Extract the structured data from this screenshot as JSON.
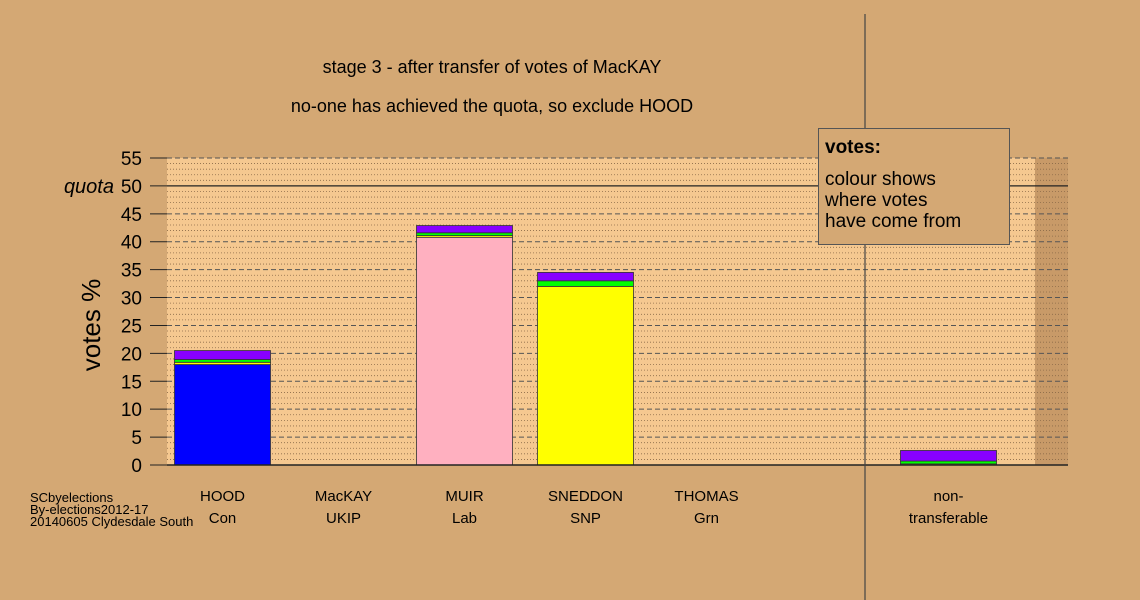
{
  "chart_data": {
    "type": "bar",
    "stacked": true,
    "title": "stage 3 - after transfer of votes of MacKAY",
    "subtitle": "no-one has achieved the quota, so exclude HOOD",
    "ylabel": "votes %",
    "ylim": [
      0,
      55
    ],
    "yticks": [
      0,
      5,
      10,
      15,
      20,
      25,
      30,
      35,
      40,
      45,
      50,
      55
    ],
    "quota": {
      "label": "quota",
      "value": 50
    },
    "categories": [
      {
        "name": "HOOD",
        "party": "Con"
      },
      {
        "name": "MacKAY",
        "party": "UKIP"
      },
      {
        "name": "MUIR",
        "party": "Lab"
      },
      {
        "name": "SNEDDON",
        "party": "SNP"
      },
      {
        "name": "THOMAS",
        "party": "Grn"
      },
      {
        "name": "",
        "party": ""
      },
      {
        "name": "non-",
        "party": "transferable"
      }
    ],
    "stacks": [
      [
        {
          "value": 18.0,
          "color": "#0000ff"
        },
        {
          "value": 0.4,
          "color": "#ffff00"
        },
        {
          "value": 0.5,
          "color": "#00ff00"
        },
        {
          "value": 1.6,
          "color": "#8800ff"
        }
      ],
      [],
      [
        {
          "value": 40.8,
          "color": "#ffb0c0"
        },
        {
          "value": 0.3,
          "color": "#ffff00"
        },
        {
          "value": 0.5,
          "color": "#00ff00"
        },
        {
          "value": 1.3,
          "color": "#8800ff"
        }
      ],
      [
        {
          "value": 32.0,
          "color": "#ffff00"
        },
        {
          "value": 1.0,
          "color": "#00ff00"
        },
        {
          "value": 1.5,
          "color": "#8800ff"
        }
      ],
      [],
      [],
      [
        {
          "value": 0.2,
          "color": "#ffff00"
        },
        {
          "value": 0.5,
          "color": "#00ff00"
        },
        {
          "value": 1.9,
          "color": "#8800ff"
        }
      ]
    ],
    "colors": {
      "background": "#d4a874",
      "plot_area": "#f5c890",
      "grid": "#555555"
    }
  },
  "legend": {
    "title": "votes:",
    "text": "colour shows\nwhere votes\nhave come from"
  },
  "footer": {
    "line1": "SCbyelections",
    "line2": "By-elections2012-17",
    "line3": "20140605 Clydesdale South"
  }
}
